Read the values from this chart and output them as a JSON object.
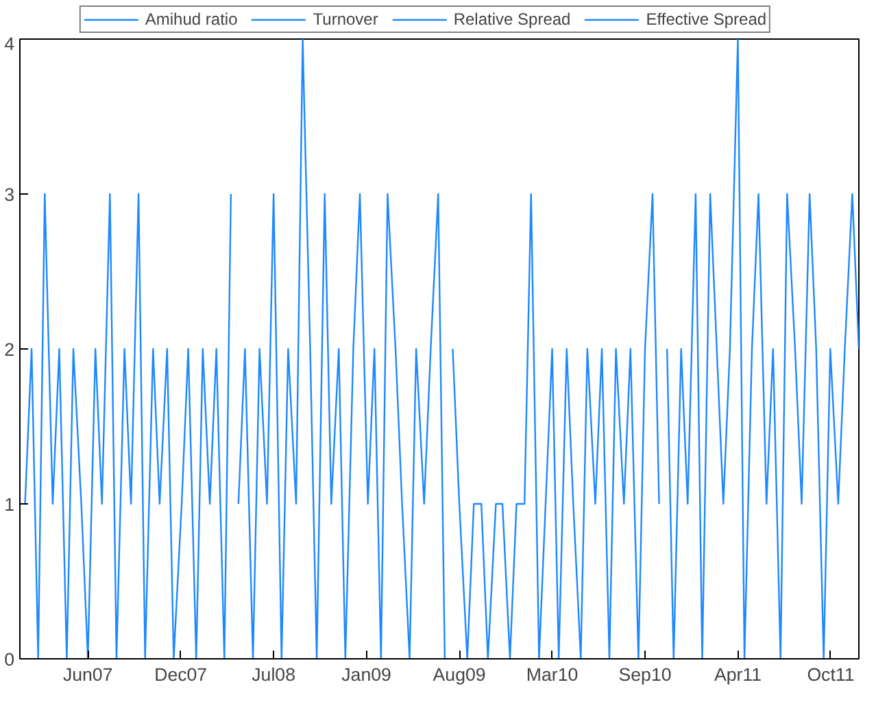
{
  "chart_data": {
    "type": "line",
    "xlim": [
      "2007-01-21",
      "2011-12-15"
    ],
    "ylim": [
      0,
      4
    ],
    "yticks": [
      0,
      1,
      2,
      3,
      4
    ],
    "xticks": [
      {
        "value": "2007-06-15",
        "label": "Jun07"
      },
      {
        "value": "2007-12-30",
        "label": "Dec07"
      },
      {
        "value": "2008-07-15",
        "label": "Jul08"
      },
      {
        "value": "2009-01-29",
        "label": "Jan09"
      },
      {
        "value": "2009-08-15",
        "label": "Aug09"
      },
      {
        "value": "2010-03-01",
        "label": "Mar10"
      },
      {
        "value": "2010-09-15",
        "label": "Sep10"
      },
      {
        "value": "2011-04-01",
        "label": "Apr11"
      },
      {
        "value": "2011-10-16",
        "label": "Oct11"
      }
    ],
    "grid": false,
    "legend": "top",
    "marker": "none",
    "line_style": "solid",
    "series": [
      {
        "name": "Amihud ratio",
        "color": "#1e88ff",
        "x": [
          "2007-02-01",
          "2007-02-15",
          "2007-03-01",
          "2007-03-15",
          "2007-04-01",
          "2007-04-15",
          "2007-05-01",
          "2007-05-15",
          "2007-06-01",
          "2007-06-15",
          "2007-07-01",
          "2007-07-15",
          "2007-08-01",
          "2007-08-15",
          "2007-09-01",
          "2007-09-15",
          "2007-10-01",
          "2007-10-15",
          "2007-11-01",
          "2007-11-15",
          "2007-12-01",
          "2007-12-15",
          "2008-01-01",
          "2008-01-15",
          "2008-02-01",
          "2008-02-15",
          "2008-03-01",
          "2008-03-15",
          "2008-04-01",
          "2008-04-15"
        ],
        "values": [
          1,
          2,
          0,
          3,
          1,
          2,
          0,
          2,
          1,
          0,
          2,
          1,
          3,
          0,
          2,
          1,
          3,
          0,
          2,
          1,
          2,
          0,
          1,
          2,
          0,
          2,
          1,
          2,
          0,
          3
        ]
      },
      {
        "name": "Turnover",
        "color": "#1e88ff",
        "x": [
          "2008-05-01",
          "2008-05-15",
          "2008-06-01",
          "2008-06-15",
          "2008-07-01",
          "2008-07-15",
          "2008-08-01",
          "2008-08-15",
          "2008-09-01",
          "2008-09-15",
          "2008-10-01",
          "2008-10-15",
          "2008-11-01",
          "2008-11-15",
          "2008-12-01",
          "2008-12-15",
          "2009-01-01",
          "2009-01-15",
          "2009-02-01",
          "2009-02-15",
          "2009-03-01",
          "2009-03-15",
          "2009-04-01",
          "2009-04-15",
          "2009-05-01",
          "2009-05-15",
          "2009-06-01",
          "2009-06-15",
          "2009-07-01",
          "2009-07-15"
        ],
        "values": [
          1,
          2,
          0,
          2,
          1,
          3,
          0,
          2,
          1,
          4,
          2,
          0,
          3,
          1,
          2,
          0,
          2,
          3,
          1,
          2,
          0,
          3,
          2,
          1,
          0,
          2,
          1,
          2,
          3,
          0
        ]
      },
      {
        "name": "Relative Spread",
        "color": "#1e88ff",
        "x": [
          "2009-08-01",
          "2009-08-15",
          "2009-09-01",
          "2009-09-15",
          "2009-10-01",
          "2009-10-15",
          "2009-11-01",
          "2009-11-15",
          "2009-12-01",
          "2009-12-15",
          "2010-01-01",
          "2010-01-15",
          "2010-02-01",
          "2010-02-15",
          "2010-03-01",
          "2010-03-15",
          "2010-04-01",
          "2010-04-15",
          "2010-05-01",
          "2010-05-15",
          "2010-06-01",
          "2010-06-15",
          "2010-07-01",
          "2010-07-15",
          "2010-08-01",
          "2010-08-15",
          "2010-09-01",
          "2010-09-15",
          "2010-10-01",
          "2010-10-15"
        ],
        "values": [
          2,
          1,
          0,
          1,
          1,
          0,
          1,
          1,
          0,
          1,
          1,
          3,
          0,
          1,
          2,
          0,
          2,
          1,
          0,
          2,
          1,
          2,
          0,
          2,
          1,
          2,
          0,
          2,
          3,
          1
        ]
      },
      {
        "name": "Effective Spread",
        "color": "#1e88ff",
        "x": [
          "2010-11-01",
          "2010-11-15",
          "2010-12-01",
          "2010-12-15",
          "2011-01-01",
          "2011-01-15",
          "2011-02-01",
          "2011-02-15",
          "2011-03-01",
          "2011-03-15",
          "2011-04-01",
          "2011-04-15",
          "2011-05-01",
          "2011-05-15",
          "2011-06-01",
          "2011-06-15",
          "2011-07-01",
          "2011-07-15",
          "2011-08-01",
          "2011-08-15",
          "2011-09-01",
          "2011-09-15",
          "2011-10-01",
          "2011-10-15",
          "2011-11-01",
          "2011-11-15",
          "2011-12-01",
          "2011-12-15"
        ],
        "values": [
          2,
          0,
          2,
          1,
          3,
          0,
          3,
          2,
          1,
          2,
          4,
          0,
          2,
          3,
          1,
          2,
          0,
          3,
          2,
          1,
          3,
          2,
          0,
          2,
          1,
          2,
          3,
          2
        ]
      }
    ]
  }
}
